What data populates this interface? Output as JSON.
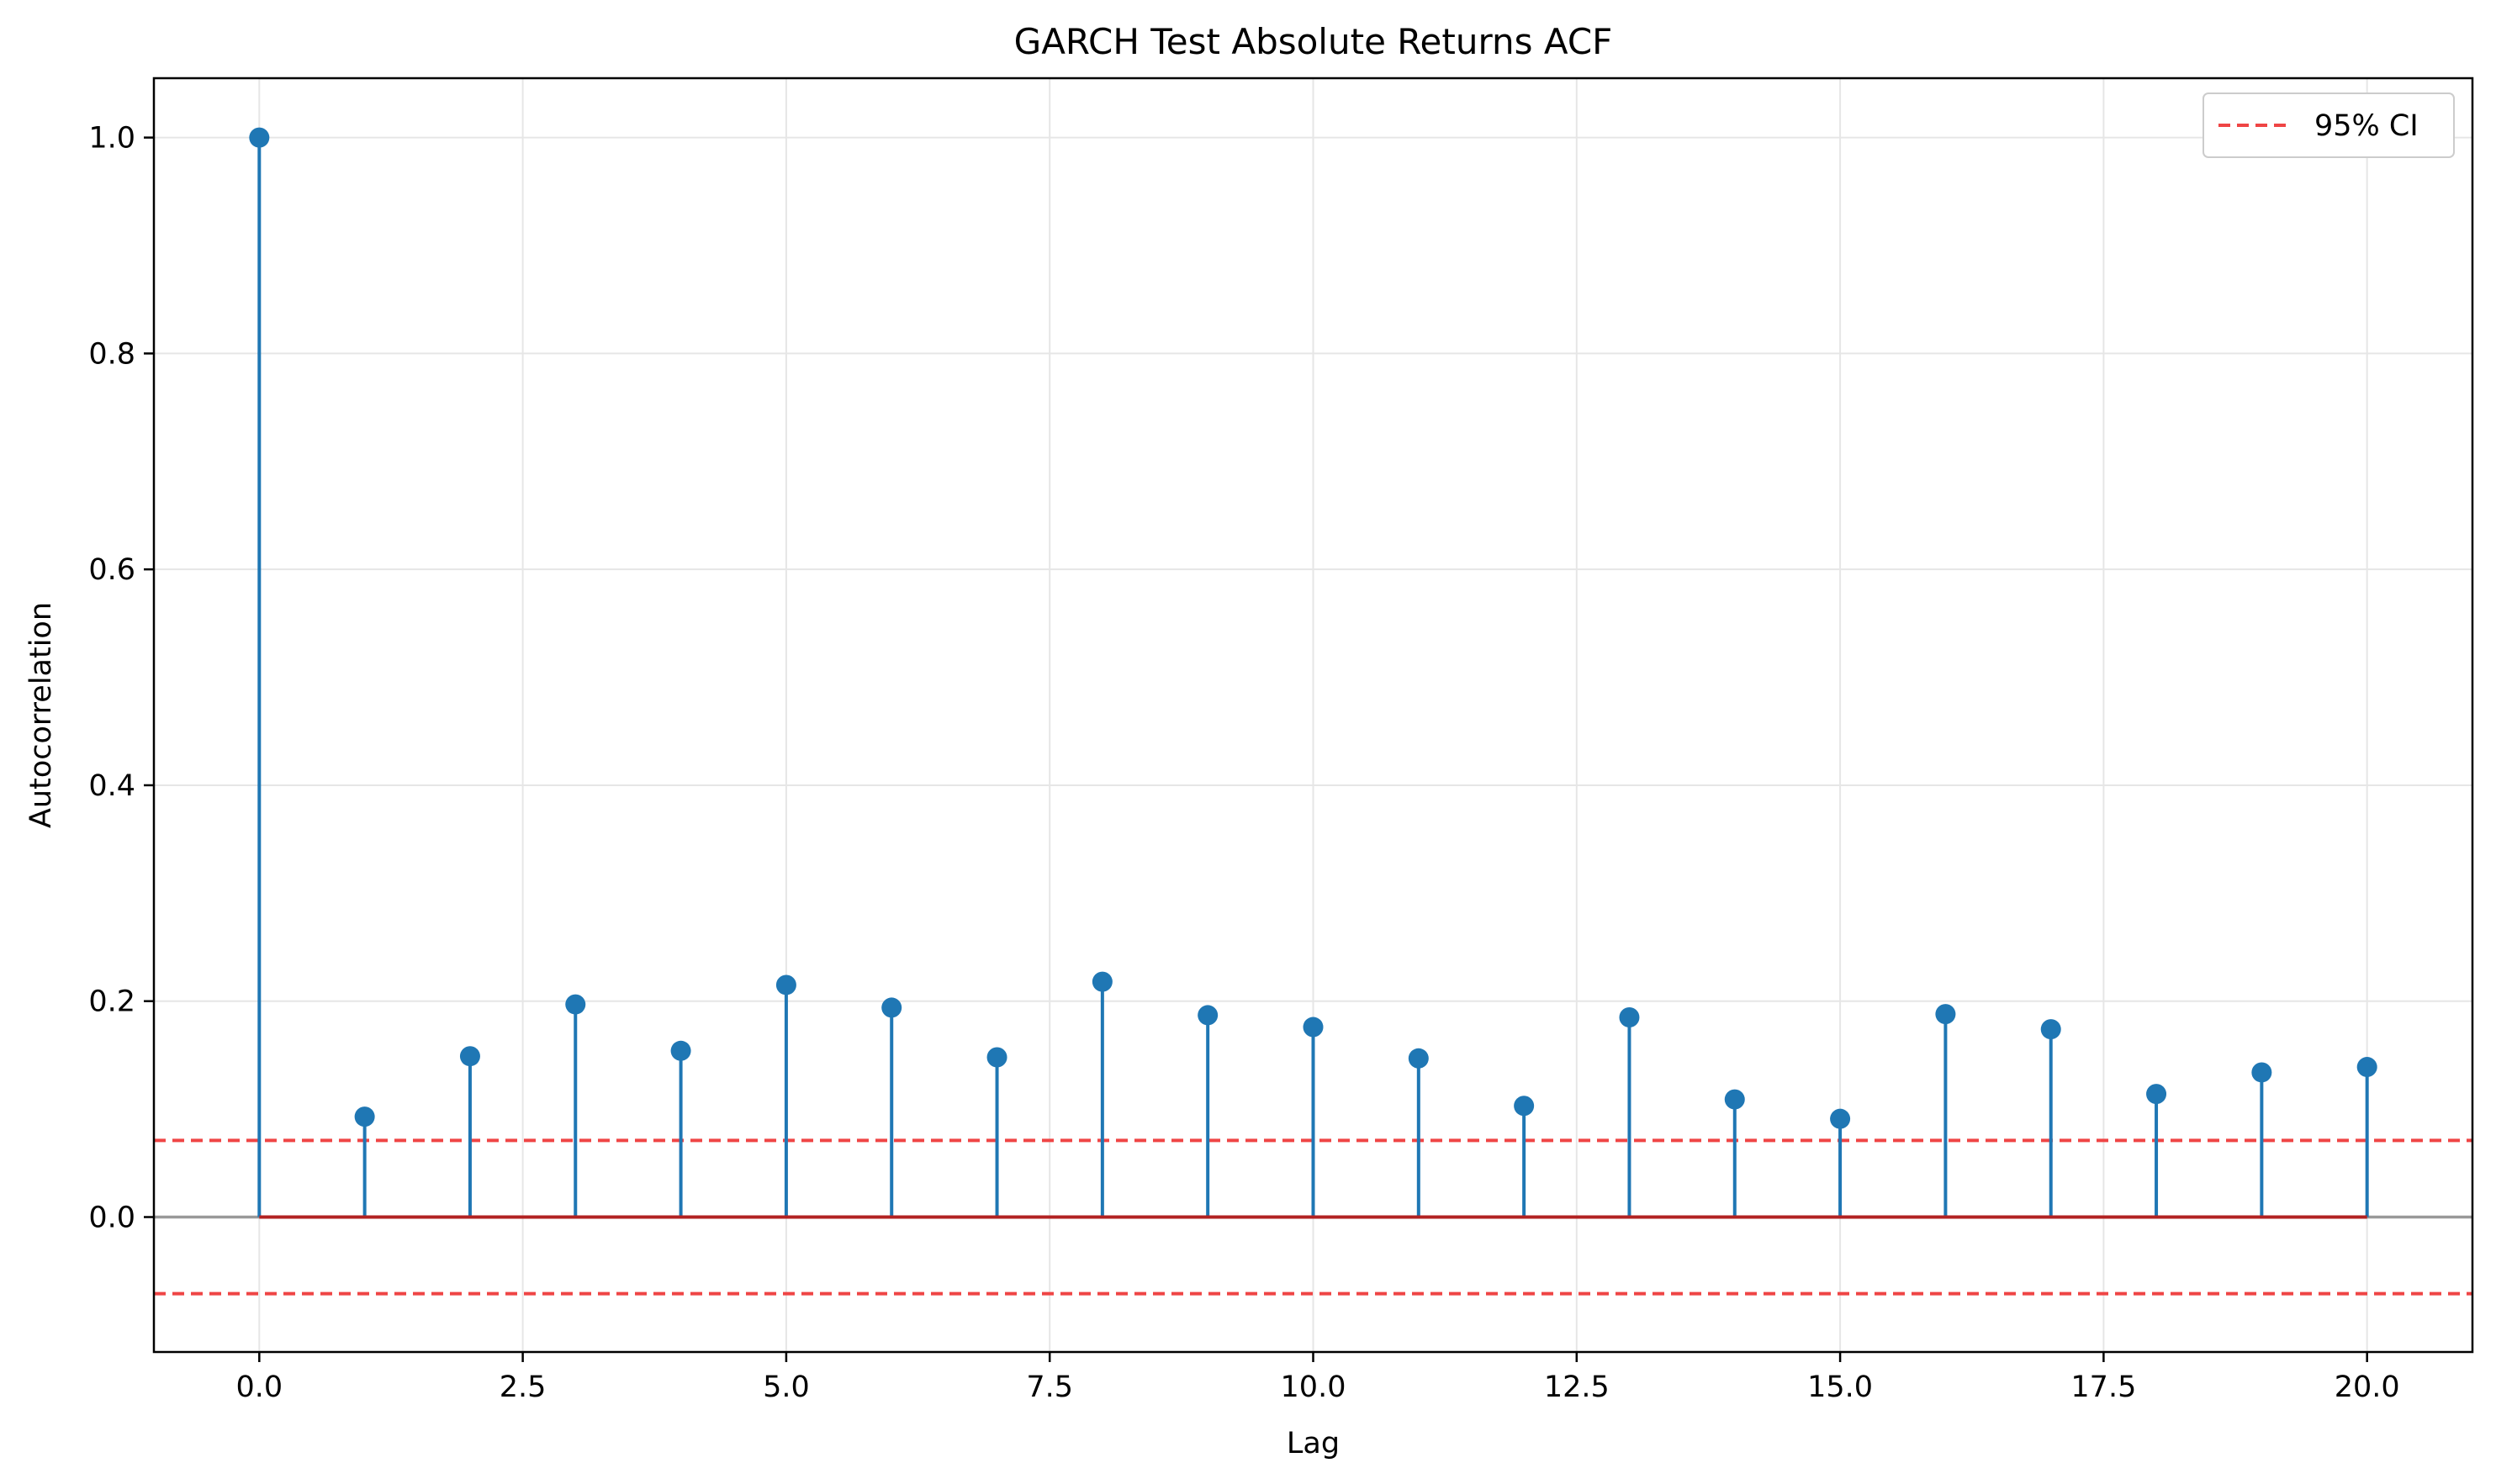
{
  "chart_data": {
    "type": "stem",
    "title": "GARCH Test Absolute Returns ACF",
    "xlabel": "Lag",
    "ylabel": "Autocorrelation",
    "xlim": [
      -1,
      21
    ],
    "ylim": [
      -0.125,
      1.055
    ],
    "x_ticks": [
      0.0,
      2.5,
      5.0,
      7.5,
      10.0,
      12.5,
      15.0,
      17.5,
      20.0
    ],
    "x_tick_labels": [
      "0.0",
      "2.5",
      "5.0",
      "7.5",
      "10.0",
      "12.5",
      "15.0",
      "17.5",
      "20.0"
    ],
    "y_ticks": [
      0.0,
      0.2,
      0.4,
      0.6,
      0.8,
      1.0
    ],
    "y_tick_labels": [
      "0.0",
      "0.2",
      "0.4",
      "0.6",
      "0.8",
      "1.0"
    ],
    "grid": true,
    "legend_position": "top-right",
    "series": [
      {
        "x": [
          0,
          1,
          2,
          3,
          4,
          5,
          6,
          7,
          8,
          9,
          10,
          11,
          12,
          13,
          14,
          15,
          16,
          17,
          18,
          19,
          20
        ],
        "values": [
          1.0,
          0.093,
          0.149,
          0.197,
          0.154,
          0.215,
          0.194,
          0.148,
          0.218,
          0.187,
          0.176,
          0.147,
          0.103,
          0.185,
          0.109,
          0.091,
          0.188,
          0.174,
          0.114,
          0.134,
          0.139
        ],
        "color": "#1f77b4"
      }
    ],
    "confidence_interval": {
      "name": "95% CI",
      "upper": 0.071,
      "lower": -0.071,
      "color": "#ef4545",
      "style": "dashed"
    },
    "baseline": {
      "value": 0.0,
      "color": "#b22222"
    },
    "zero_line": {
      "value": 0.0,
      "color": "#999999"
    }
  }
}
